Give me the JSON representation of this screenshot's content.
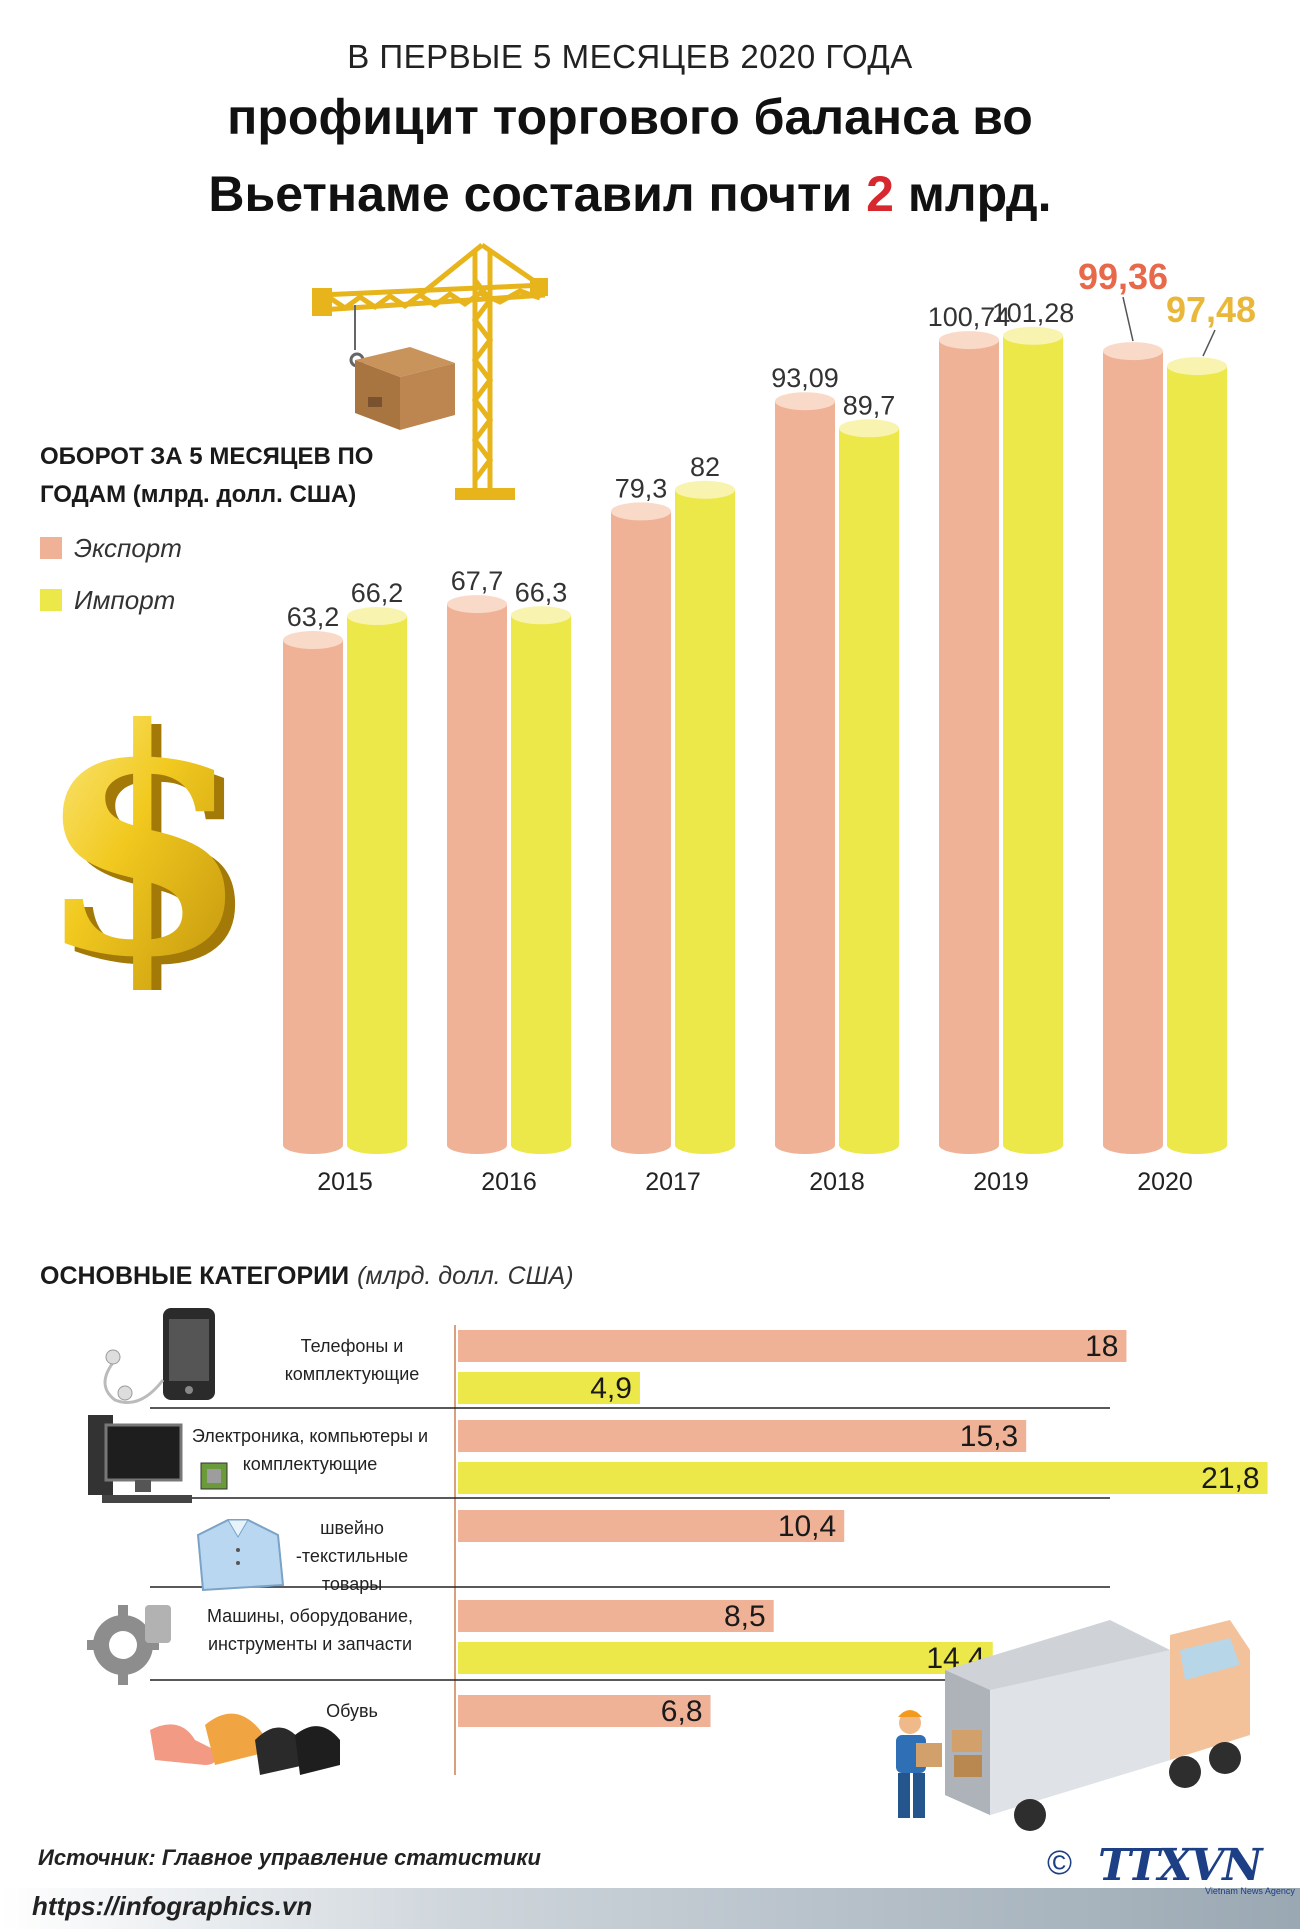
{
  "header": {
    "subtitle": "В ПЕРВЫЕ 5 МЕСЯЦЕВ 2020 ГОДА",
    "title_line1": "профицит торгового баланса во",
    "title_line2_prefix": "Вьетнаме составил почти ",
    "title_highlight": "2",
    "title_line2_suffix": " млрд."
  },
  "legend": {
    "title": "ОБОРОТ ЗА 5 МЕСЯЦЕВ ПО ГОДАМ (млрд. долл. США)",
    "export_label": "Экспорт",
    "import_label": "Импорт"
  },
  "categories_section": {
    "title": "ОСНОВНЫЕ КАТЕГОРИИ",
    "unit": "(млрд. долл. США)"
  },
  "chart_data": [
    {
      "type": "bar",
      "categories": [
        "2015",
        "2016",
        "2017",
        "2018",
        "2019",
        "2020"
      ],
      "series": [
        {
          "name": "Экспорт",
          "values": [
            63.2,
            67.7,
            79.3,
            93.09,
            100.74,
            99.36
          ],
          "labels": [
            "63,2",
            "67,7",
            "79,3",
            "93,09",
            "100,74",
            "99,36"
          ]
        },
        {
          "name": "Импорт",
          "values": [
            66.2,
            66.3,
            82,
            89.7,
            101.28,
            97.48
          ],
          "labels": [
            "66,2",
            "66,3",
            "82",
            "89,7",
            "101,28",
            "97,48"
          ]
        }
      ],
      "ylim": [
        0,
        110
      ]
    },
    {
      "type": "bar",
      "orientation": "horizontal",
      "categories": [
        "Телефоны и комплектующие",
        "Электроника, компьютеры и комплектующие",
        "швейно -текстильные товары",
        "Машины, оборудование, инструменты и запчасти",
        "Обувь"
      ],
      "series": [
        {
          "name": "Экспорт",
          "values": [
            18,
            15.3,
            10.4,
            8.5,
            6.8
          ],
          "labels": [
            "18",
            "15,3",
            "10,4",
            "8,5",
            "6,8"
          ]
        },
        {
          "name": "Импорт",
          "values": [
            4.9,
            21.8,
            null,
            14.4,
            null
          ],
          "labels": [
            "4,9",
            "21,8",
            "",
            "14,4",
            ""
          ]
        }
      ],
      "xlim": [
        0,
        22
      ]
    }
  ],
  "category_labels": [
    [
      "Телефоны и",
      "комплектующие"
    ],
    [
      "Электроника, компьютеры и",
      "комплектующие"
    ],
    [
      "швейно",
      "-текстильные",
      "товары"
    ],
    [
      "Машины, оборудование,",
      "инструменты и запчасти"
    ],
    [
      "Обувь"
    ]
  ],
  "colors": {
    "export": "#efb297",
    "export_top": "#f9dac9",
    "import": "#ece84a",
    "import_top": "#f8f4b0",
    "highlight_export": "#e8684a",
    "highlight_import": "#e9b73a",
    "title_highlight": "#d7282f"
  },
  "icons": [
    "crane-icon",
    "box-icon",
    "dollar-icon",
    "phone-icon",
    "computer-icon",
    "shirt-icon",
    "gear-icon",
    "shoes-icon",
    "truck-icon",
    "worker-icon"
  ],
  "footer": {
    "source": "Источник: Главное управление статистики",
    "url": "https://infographics.vn",
    "copyright": "©",
    "brand": "TTXVN",
    "brand_sub": "Vietnam News Agency"
  }
}
